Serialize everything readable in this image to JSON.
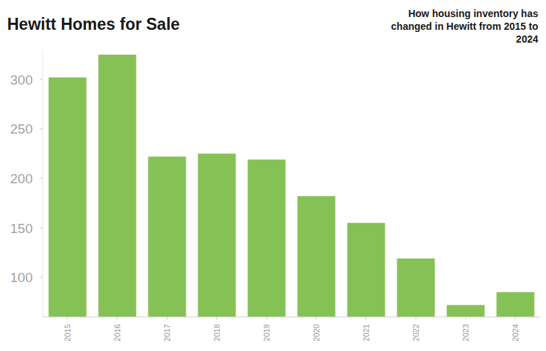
{
  "chart_data": {
    "type": "bar",
    "title": "Hewitt Homes for Sale",
    "subtitle": "How housing inventory has changed in Hewitt from 2015 to 2024",
    "categories": [
      "2015",
      "2016",
      "2017",
      "2018",
      "2019",
      "2020",
      "2021",
      "2022",
      "2023",
      "2024"
    ],
    "values": [
      302,
      325,
      222,
      225,
      219,
      182,
      155,
      119,
      72,
      85
    ],
    "color": "#86c155",
    "ylim": [
      60,
      330
    ],
    "yticks": [
      100,
      150,
      200,
      250,
      300
    ],
    "grid": false
  }
}
